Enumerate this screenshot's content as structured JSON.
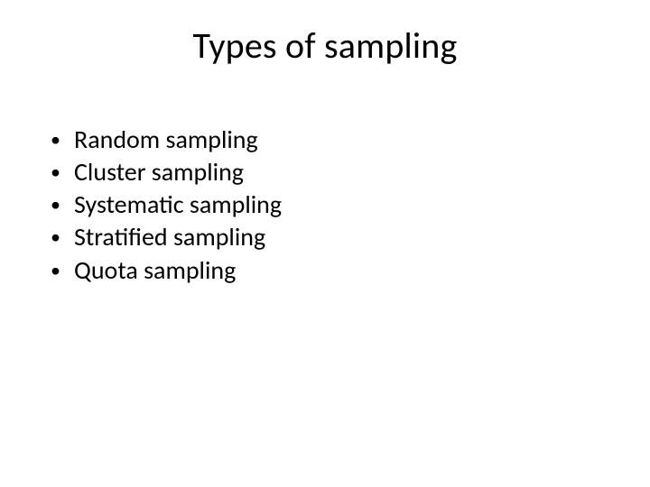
{
  "slide": {
    "title": "Types of sampling",
    "bullets": [
      "Random sampling",
      "Cluster sampling",
      "Systematic sampling",
      "Stratified sampling",
      "Quota sampling"
    ],
    "style": {
      "background_color": "#ffffff",
      "text_color": "#000000",
      "title_fontsize": 40,
      "title_fontweight": 400,
      "body_fontsize": 28,
      "bullet_glyph": "•",
      "bullet_color": "#000000",
      "font_family": "Calibri"
    }
  }
}
